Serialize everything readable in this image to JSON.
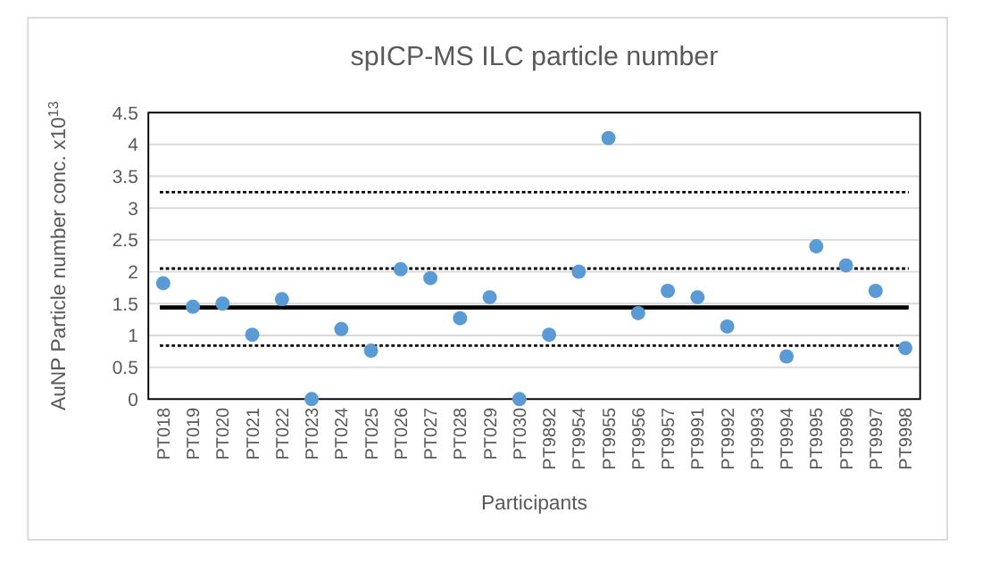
{
  "chart_data": {
    "type": "scatter",
    "title": "spICP-MS ILC particle number",
    "xlabel": "Participants",
    "ylabel": "AuNP Particle number conc. x10$^{13}$",
    "categories": [
      "PT018",
      "PT019",
      "PT020",
      "PT021",
      "PT022",
      "PT023",
      "PT024",
      "PT025",
      "PT026",
      "PT027",
      "PT028",
      "PT029",
      "PT030",
      "PT9892",
      "PT9954",
      "PT9955",
      "PT9956",
      "PT9957",
      "PT9991",
      "PT9992",
      "PT9993",
      "PT9994",
      "PT9995",
      "PT9996",
      "PT9997",
      "PT9998"
    ],
    "series": [
      {
        "color": "#5b9bd5",
        "values": [
          1.82,
          1.45,
          1.5,
          1.01,
          1.57,
          0,
          1.1,
          0.76,
          2.04,
          1.9,
          1.27,
          1.6,
          0,
          1.01,
          2.0,
          4.1,
          1.35,
          1.7,
          1.6,
          1.14,
          null,
          0.67,
          2.4,
          2.1,
          1.7,
          0.8
        ]
      }
    ],
    "ylim": [
      0,
      4.5
    ],
    "yticks": [
      0,
      0.5,
      1,
      1.5,
      2,
      2.5,
      3,
      3.5,
      4,
      4.5
    ],
    "grid": "y",
    "marker": "circle",
    "ref_lines": [
      {
        "axis": "y",
        "value": 1.44,
        "color": "#000000",
        "line_style": "solid"
      },
      {
        "axis": "y",
        "value": 2.05,
        "color": "#000000",
        "line_style": "dotted"
      },
      {
        "axis": "y",
        "value": 0.84,
        "color": "#000000",
        "line_style": "dotted"
      },
      {
        "axis": "y",
        "value": 3.25,
        "color": "#000000",
        "line_style": "dotted"
      }
    ]
  }
}
